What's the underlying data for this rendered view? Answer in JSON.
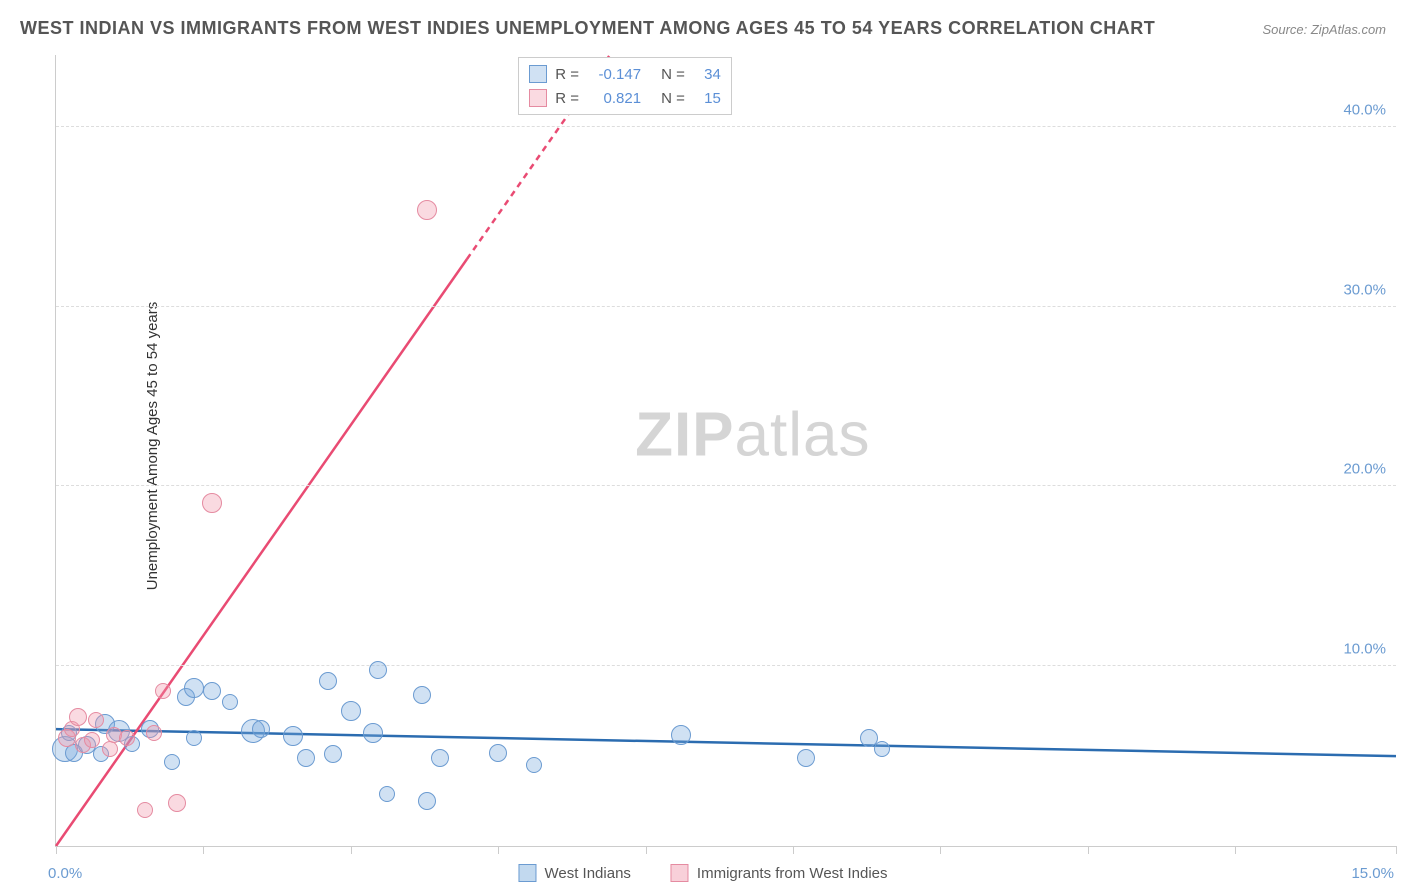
{
  "title": "WEST INDIAN VS IMMIGRANTS FROM WEST INDIES UNEMPLOYMENT AMONG AGES 45 TO 54 YEARS CORRELATION CHART",
  "source": "Source: ZipAtlas.com",
  "watermark": {
    "part1": "ZIP",
    "part2": "atlas"
  },
  "chart": {
    "type": "scatter",
    "ylabel": "Unemployment Among Ages 45 to 54 years",
    "xlim": [
      0,
      15
    ],
    "ylim": [
      0,
      44
    ],
    "xtick_labels": {
      "start": "0.0%",
      "end": "15.0%"
    },
    "xtick_positions_pct": [
      0,
      11,
      22,
      33,
      44,
      55,
      66,
      77,
      88,
      100
    ],
    "ytick_values": [
      10,
      20,
      30,
      40
    ],
    "ytick_labels": [
      "10.0%",
      "20.0%",
      "30.0%",
      "40.0%"
    ],
    "grid_color": "#dddddd",
    "background_color": "#ffffff",
    "axis_color": "#cccccc",
    "tick_label_color": "#6b9bd1",
    "series": [
      {
        "name": "West Indians",
        "marker_fill": "rgba(120,170,220,0.35)",
        "marker_stroke": "#6b9bd1",
        "marker_radius": 10,
        "trend_color": "#2b6cb0",
        "trend": {
          "x1": 0,
          "y1": 6.5,
          "x2": 15,
          "y2": 5.0,
          "dashed_after_x": null
        },
        "stats": {
          "R": "-0.147",
          "N": "34"
        },
        "points": [
          {
            "x": 0.1,
            "y": 5.4,
            "r": 13
          },
          {
            "x": 0.15,
            "y": 6.3,
            "r": 8
          },
          {
            "x": 0.2,
            "y": 5.2,
            "r": 9
          },
          {
            "x": 0.35,
            "y": 5.6,
            "r": 9
          },
          {
            "x": 0.5,
            "y": 5.1,
            "r": 8
          },
          {
            "x": 0.55,
            "y": 6.8,
            "r": 10
          },
          {
            "x": 0.7,
            "y": 6.4,
            "r": 11
          },
          {
            "x": 0.85,
            "y": 5.7,
            "r": 8
          },
          {
            "x": 1.05,
            "y": 6.5,
            "r": 9
          },
          {
            "x": 1.3,
            "y": 4.7,
            "r": 8
          },
          {
            "x": 1.45,
            "y": 8.3,
            "r": 9
          },
          {
            "x": 1.55,
            "y": 8.8,
            "r": 10
          },
          {
            "x": 1.55,
            "y": 6.0,
            "r": 8
          },
          {
            "x": 1.75,
            "y": 8.6,
            "r": 9
          },
          {
            "x": 1.95,
            "y": 8.0,
            "r": 8
          },
          {
            "x": 2.2,
            "y": 6.4,
            "r": 12
          },
          {
            "x": 2.3,
            "y": 6.5,
            "r": 9
          },
          {
            "x": 2.65,
            "y": 6.1,
            "r": 10
          },
          {
            "x": 2.8,
            "y": 4.9,
            "r": 9
          },
          {
            "x": 3.05,
            "y": 9.2,
            "r": 9
          },
          {
            "x": 3.1,
            "y": 5.1,
            "r": 9
          },
          {
            "x": 3.3,
            "y": 7.5,
            "r": 10
          },
          {
            "x": 3.55,
            "y": 6.3,
            "r": 10
          },
          {
            "x": 3.6,
            "y": 9.8,
            "r": 9
          },
          {
            "x": 3.7,
            "y": 2.9,
            "r": 8
          },
          {
            "x": 4.1,
            "y": 8.4,
            "r": 9
          },
          {
            "x": 4.15,
            "y": 2.5,
            "r": 9
          },
          {
            "x": 4.3,
            "y": 4.9,
            "r": 9
          },
          {
            "x": 4.95,
            "y": 5.2,
            "r": 9
          },
          {
            "x": 5.35,
            "y": 4.5,
            "r": 8
          },
          {
            "x": 7.0,
            "y": 6.2,
            "r": 10
          },
          {
            "x": 8.4,
            "y": 4.9,
            "r": 9
          },
          {
            "x": 9.1,
            "y": 6.0,
            "r": 9
          },
          {
            "x": 9.25,
            "y": 5.4,
            "r": 8
          }
        ]
      },
      {
        "name": "Immigrants from West Indies",
        "marker_fill": "rgba(240,150,170,0.35)",
        "marker_stroke": "#e58ba1",
        "marker_radius": 10,
        "trend_color": "#e94b73",
        "trend": {
          "x1": 0,
          "y1": 0.0,
          "x2": 6.2,
          "y2": 44.0,
          "dashed_after_x": 4.6
        },
        "stats": {
          "R": "0.821",
          "N": "15"
        },
        "points": [
          {
            "x": 0.12,
            "y": 6.0,
            "r": 9
          },
          {
            "x": 0.18,
            "y": 6.5,
            "r": 8
          },
          {
            "x": 0.25,
            "y": 7.2,
            "r": 9
          },
          {
            "x": 0.3,
            "y": 5.6,
            "r": 8
          },
          {
            "x": 0.4,
            "y": 5.9,
            "r": 8
          },
          {
            "x": 0.45,
            "y": 7.0,
            "r": 8
          },
          {
            "x": 0.6,
            "y": 5.4,
            "r": 8
          },
          {
            "x": 0.65,
            "y": 6.2,
            "r": 8
          },
          {
            "x": 0.8,
            "y": 6.0,
            "r": 8
          },
          {
            "x": 1.0,
            "y": 2.0,
            "r": 8
          },
          {
            "x": 1.1,
            "y": 6.3,
            "r": 8
          },
          {
            "x": 1.2,
            "y": 8.6,
            "r": 8
          },
          {
            "x": 1.35,
            "y": 2.4,
            "r": 9
          },
          {
            "x": 1.75,
            "y": 19.1,
            "r": 10
          },
          {
            "x": 4.15,
            "y": 35.4,
            "r": 10
          }
        ]
      }
    ],
    "legend": [
      {
        "swatch_fill": "rgba(120,170,220,0.45)",
        "swatch_stroke": "#6b9bd1",
        "label": "West Indians"
      },
      {
        "swatch_fill": "rgba(240,150,170,0.45)",
        "swatch_stroke": "#e58ba1",
        "label": "Immigrants from West Indies"
      }
    ],
    "stats_box": {
      "position_left_pct": 34.5,
      "label_R": "R =",
      "label_N": "N =",
      "value_color": "#5b8fd6"
    }
  }
}
